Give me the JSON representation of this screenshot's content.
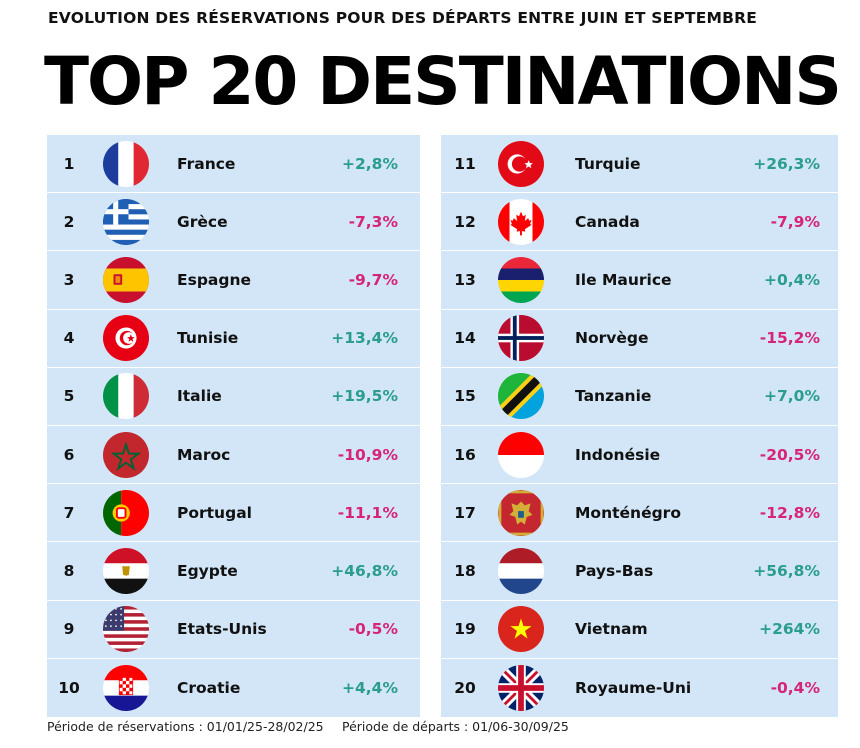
{
  "header": {
    "subtitle": "EVOLUTION DES RÉSERVATIONS POUR DES DÉPARTS ENTRE JUIN ET SEPTEMBRE",
    "title": "TOP 20 DESTINATIONS"
  },
  "colors": {
    "positive": "#2a9d8f",
    "negative": "#d6247a",
    "panel": "#d2e6f7"
  },
  "chart_data": {
    "type": "table",
    "title": "TOP 20 DESTINATIONS",
    "subtitle": "EVOLUTION DES RÉSERVATIONS POUR DES DÉPARTS ENTRE JUIN ET SEPTEMBRE",
    "columns": [
      "rank",
      "flag",
      "country",
      "change"
    ],
    "rows": [
      {
        "rank": "1",
        "flag": "france",
        "country": "France",
        "change": "+2,8%",
        "value": 2.8
      },
      {
        "rank": "2",
        "flag": "greece",
        "country": "Grèce",
        "change": "-7,3%",
        "value": -7.3
      },
      {
        "rank": "3",
        "flag": "spain",
        "country": "Espagne",
        "change": "-9,7%",
        "value": -9.7
      },
      {
        "rank": "4",
        "flag": "tunisia",
        "country": "Tunisie",
        "change": "+13,4%",
        "value": 13.4
      },
      {
        "rank": "5",
        "flag": "italy",
        "country": "Italie",
        "change": "+19,5%",
        "value": 19.5
      },
      {
        "rank": "6",
        "flag": "morocco",
        "country": "Maroc",
        "change": "-10,9%",
        "value": -10.9
      },
      {
        "rank": "7",
        "flag": "portugal",
        "country": "Portugal",
        "change": "-11,1%",
        "value": -11.1
      },
      {
        "rank": "8",
        "flag": "egypt",
        "country": "Egypte",
        "change": "+46,8%",
        "value": 46.8
      },
      {
        "rank": "9",
        "flag": "usa",
        "country": "Etats-Unis",
        "change": "-0,5%",
        "value": -0.5
      },
      {
        "rank": "10",
        "flag": "croatia",
        "country": "Croatie",
        "change": "+4,4%",
        "value": 4.4
      },
      {
        "rank": "11",
        "flag": "turkey",
        "country": "Turquie",
        "change": "+26,3%",
        "value": 26.3
      },
      {
        "rank": "12",
        "flag": "canada",
        "country": "Canada",
        "change": "-7,9%",
        "value": -7.9
      },
      {
        "rank": "13",
        "flag": "mauritius",
        "country": "Ile Maurice",
        "change": "+0,4%",
        "value": 0.4
      },
      {
        "rank": "14",
        "flag": "norway",
        "country": "Norvège",
        "change": "-15,2%",
        "value": -15.2
      },
      {
        "rank": "15",
        "flag": "tanzania",
        "country": "Tanzanie",
        "change": "+7,0%",
        "value": 7.0
      },
      {
        "rank": "16",
        "flag": "indonesia",
        "country": "Indonésie",
        "change": "-20,5%",
        "value": -20.5
      },
      {
        "rank": "17",
        "flag": "montenegro",
        "country": "Monténégro",
        "change": "-12,8%",
        "value": -12.8
      },
      {
        "rank": "18",
        "flag": "netherlands",
        "country": "Pays-Bas",
        "change": "+56,8%",
        "value": 56.8
      },
      {
        "rank": "19",
        "flag": "vietnam",
        "country": "Vietnam",
        "change": "+264%",
        "value": 264
      },
      {
        "rank": "20",
        "flag": "uk",
        "country": "Royaume-Uni",
        "change": "-0,4%",
        "value": -0.4
      }
    ]
  },
  "footer": {
    "booking_period": "Période de réservations : 01/01/25-28/02/25",
    "departure_period": "Période de départs : 01/06-30/09/25"
  }
}
